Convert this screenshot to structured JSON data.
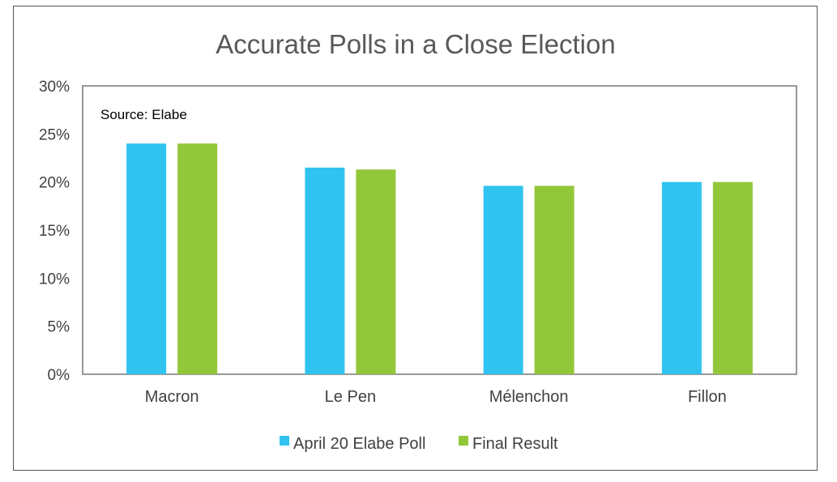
{
  "chart_data": {
    "type": "bar",
    "title": "Accurate Polls in a Close Election",
    "annotation": "Source: Elabe",
    "categories": [
      "Macron",
      "Le Pen",
      "Mélenchon",
      "Fillon"
    ],
    "series": [
      {
        "name": "April 20 Elabe Poll",
        "color": "#30c3f0",
        "values": [
          24.0,
          21.5,
          19.6,
          20.0
        ]
      },
      {
        "name": "Final Result",
        "color": "#93c73a",
        "values": [
          24.0,
          21.3,
          19.6,
          20.0
        ]
      }
    ],
    "ylim": [
      0,
      30
    ],
    "yticks": [
      0,
      5,
      10,
      15,
      20,
      25,
      30
    ],
    "ytick_labels": [
      "0%",
      "5%",
      "10%",
      "15%",
      "20%",
      "25%",
      "30%"
    ],
    "xlabel": "",
    "ylabel": "",
    "grid": false,
    "legend_position": "bottom"
  }
}
